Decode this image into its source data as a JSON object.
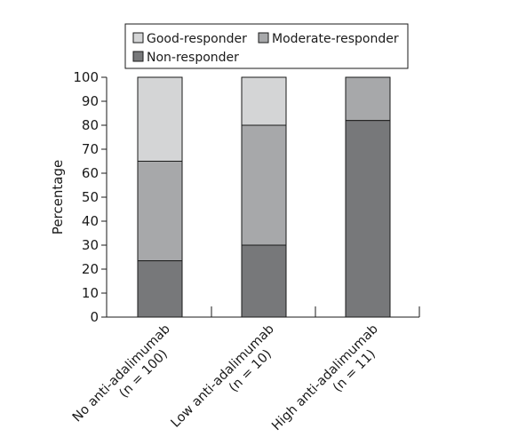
{
  "chart_data": {
    "type": "bar",
    "stacked": true,
    "ylabel": "Percentage",
    "xlabel": "",
    "ylim": [
      0,
      100
    ],
    "yticks": [
      0,
      10,
      20,
      30,
      40,
      50,
      60,
      70,
      80,
      90,
      100
    ],
    "categories": [
      [
        "No anti-adalimumab",
        "(n = 100)"
      ],
      [
        "Low anti-adalimumab",
        "(n = 10)"
      ],
      [
        "High anti-adalimumab",
        "(n = 11)"
      ]
    ],
    "series": [
      {
        "name": "Non-responder",
        "values": [
          23.5,
          30,
          82
        ],
        "color": "#77787a"
      },
      {
        "name": "Moderate-responder",
        "values": [
          41.5,
          50,
          18
        ],
        "color": "#a7a8aa"
      },
      {
        "name": "Good-responder",
        "values": [
          35,
          20,
          0
        ],
        "color": "#d4d5d6"
      }
    ],
    "legend": {
      "placement": "top",
      "rows": [
        [
          "Good-responder",
          "Moderate-responder"
        ],
        [
          "Non-responder"
        ]
      ]
    },
    "grid": false
  }
}
